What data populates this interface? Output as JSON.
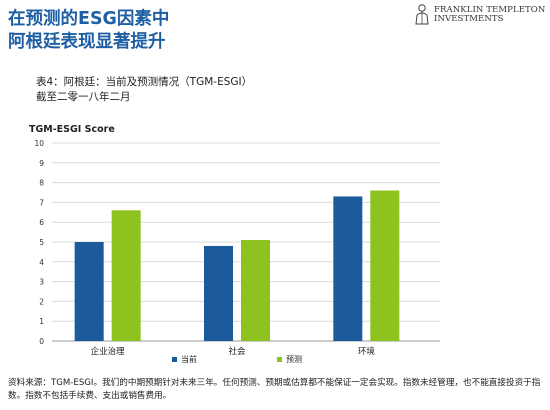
{
  "header": {
    "title_line1": "在预测的ESG因素中",
    "title_line2": "阿根廷表现显著提升"
  },
  "logo": {
    "line1": "FRANKLIN TEMPLETON",
    "line2": "INVESTMENTS",
    "icon": "franklin-templeton-logo-icon"
  },
  "subtitle": {
    "line1": "表4：阿根廷：当前及预测情况（TGM-ESGI）",
    "line2": "截至二零一八年二月"
  },
  "chart_data": {
    "type": "bar",
    "title": "TGM-ESGI Score",
    "categories": [
      "企业治理",
      "社会",
      "环境"
    ],
    "series": [
      {
        "name": "当前",
        "color": "#1b5a9b",
        "values": [
          5.0,
          4.8,
          7.3
        ]
      },
      {
        "name": "预测",
        "color": "#8dc21f",
        "values": [
          6.6,
          5.1,
          7.6
        ]
      }
    ],
    "ylim": [
      0,
      10
    ],
    "yticks": [
      "0",
      "1",
      "2",
      "3",
      "4",
      "5",
      "6",
      "7",
      "8",
      "9",
      "10"
    ],
    "grid": true,
    "legend": "bottom-center"
  },
  "footer": {
    "text": "资料来源：TGM-ESGI。我们的中期预期针对未来三年。任何预测、预期或估算都不能保证一定会实现。指数未经管理，也不能直接投资于指数。指数不包括手续费、支出或销售费用。"
  }
}
